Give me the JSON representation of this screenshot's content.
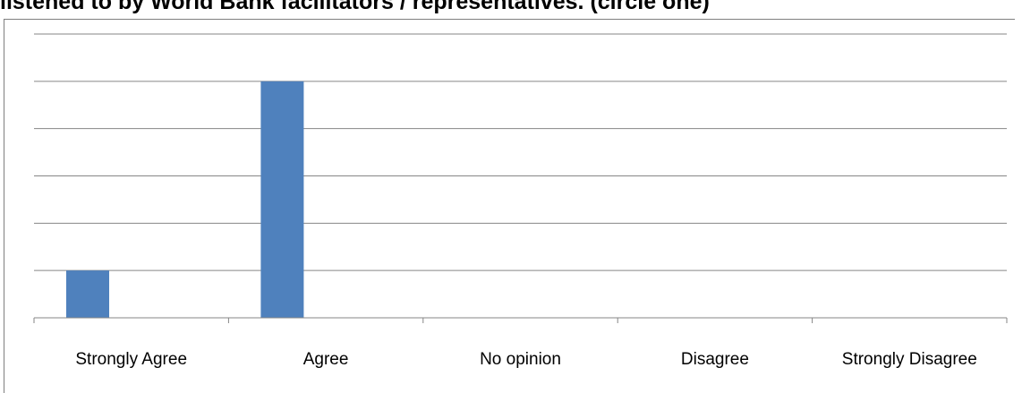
{
  "title": "listened to by World Bank facilitators / representatives. (circle one)",
  "chart_data": {
    "type": "bar",
    "title": "",
    "xlabel": "",
    "ylabel": "",
    "categories": [
      "Strongly Agree",
      "Agree",
      "No opinion",
      "Disagree",
      "Strongly Disagree"
    ],
    "values": [
      1,
      5,
      0,
      0,
      0
    ],
    "ylim": [
      0,
      6
    ],
    "grid": true,
    "legend": "none",
    "bar_color": "#4f81bd",
    "grid_color": "#868686"
  }
}
